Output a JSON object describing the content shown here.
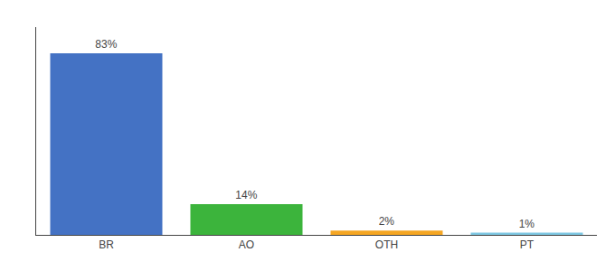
{
  "chart_data": {
    "type": "bar",
    "categories": [
      "BR",
      "AO",
      "OTH",
      "PT"
    ],
    "values": [
      83,
      14,
      2,
      1
    ],
    "value_labels": [
      "83%",
      "14%",
      "2%",
      "1%"
    ],
    "data_labels": true,
    "colors": [
      "#4472c4",
      "#3cb43c",
      "#f5a623",
      "#7ec8e3"
    ],
    "ylim": [
      0,
      95
    ],
    "grid": false,
    "tick_labels": "x"
  }
}
